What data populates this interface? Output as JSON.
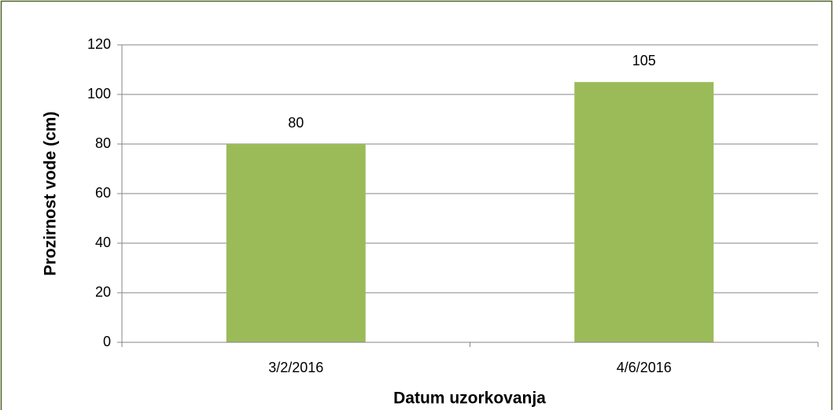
{
  "chart_data": {
    "type": "bar",
    "categories": [
      "3/2/2016",
      "4/6/2016"
    ],
    "values": [
      80,
      105
    ],
    "color": "#9bbb59",
    "xlabel": "Datum uzorkovanja",
    "ylabel": "Prozirnost vode (cm)",
    "ylim": [
      0,
      120
    ],
    "yticks": [
      0,
      20,
      40,
      60,
      80,
      100,
      120
    ],
    "grid": true
  }
}
